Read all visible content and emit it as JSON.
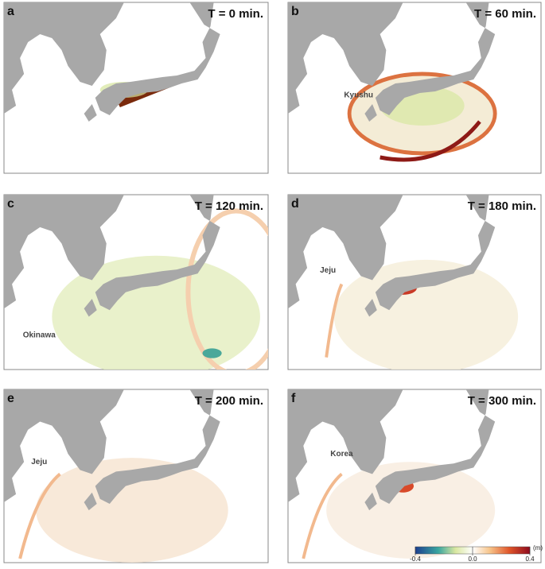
{
  "panels": [
    {
      "label": "a",
      "time": "T = 0 min."
    },
    {
      "label": "b",
      "time": "T = 60 min.",
      "place": "Kyushu"
    },
    {
      "label": "c",
      "time": "T = 120 min.",
      "place": "Okinawa"
    },
    {
      "label": "d",
      "time": "T = 180 min.",
      "place": "Jeju"
    },
    {
      "label": "e",
      "time": "T = 200 min.",
      "place": "Jeju"
    },
    {
      "label": "f",
      "time": "T = 300 min.",
      "place": "Korea"
    }
  ],
  "colorbar": {
    "range": [
      -0.4,
      0.4
    ],
    "ticks": [
      -0.4,
      {
        "value": 0,
        "label": "0.0"
      },
      0.4
    ],
    "unit": "(m)"
  }
}
